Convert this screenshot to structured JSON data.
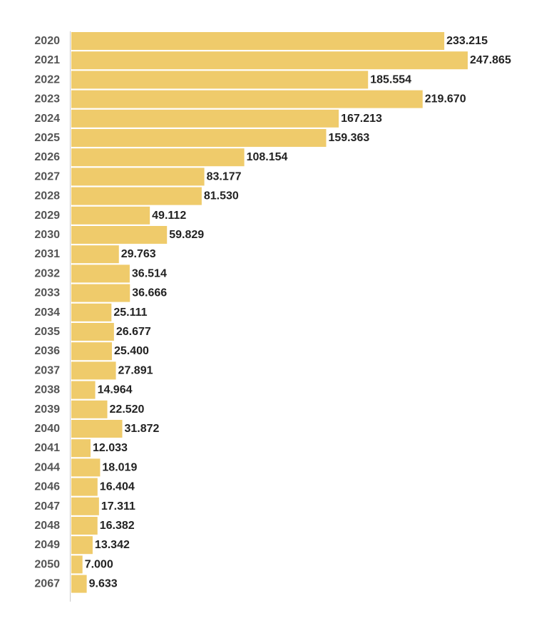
{
  "chart_data": {
    "type": "bar",
    "orientation": "horizontal",
    "categories": [
      "2020",
      "2021",
      "2022",
      "2023",
      "2024",
      "2025",
      "2026",
      "2027",
      "2028",
      "2029",
      "2030",
      "2031",
      "2032",
      "2033",
      "2034",
      "2035",
      "2036",
      "2037",
      "2038",
      "2039",
      "2040",
      "2041",
      "2044",
      "2046",
      "2047",
      "2048",
      "2049",
      "2050",
      "2067"
    ],
    "values": [
      233.215,
      247.865,
      185.554,
      219.67,
      167.213,
      159.363,
      108.154,
      83.177,
      81.53,
      49.112,
      59.829,
      29.763,
      36.514,
      36.666,
      25.111,
      26.677,
      25.4,
      27.891,
      14.964,
      22.52,
      31.872,
      12.033,
      18.019,
      16.404,
      17.311,
      16.382,
      13.342,
      7.0,
      9.633
    ],
    "value_labels": [
      "233.215",
      "247.865",
      "185.554",
      "219.670",
      "167.213",
      "159.363",
      "108.154",
      "83.177",
      "81.530",
      "49.112",
      "59.829",
      "29.763",
      "36.514",
      "36.666",
      "25.111",
      "26.677",
      "25.400",
      "27.891",
      "14.964",
      "22.520",
      "31.872",
      "12.033",
      "18.019",
      "16.404",
      "17.311",
      "16.382",
      "13.342",
      "7.000",
      "9.633"
    ],
    "xlim": [
      0,
      247.865
    ],
    "grid": false,
    "legend": "none",
    "bar_color": "#efcb6b"
  }
}
